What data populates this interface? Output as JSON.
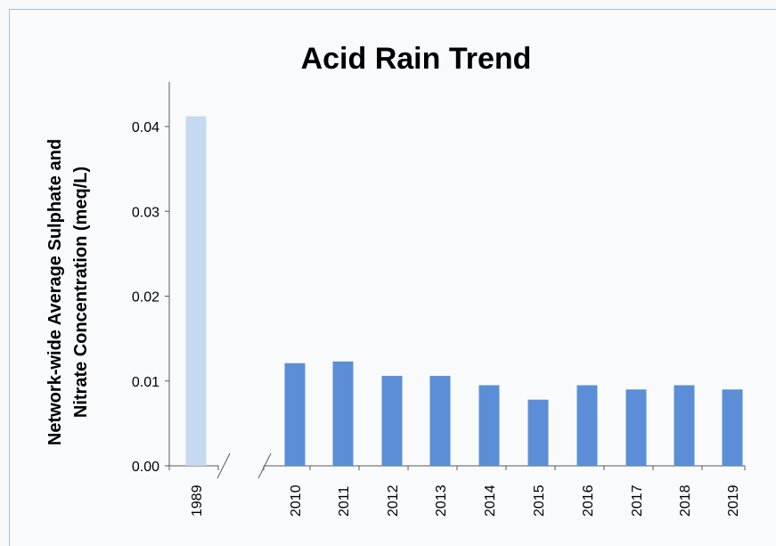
{
  "chart_data": {
    "type": "bar",
    "title": "Acid Rain Trend",
    "ylabel": "Network-wide Average Sulphate and Nitrate Concentration (meq/L)",
    "xlabel": "",
    "categories": [
      "1989",
      "2010",
      "2011",
      "2012",
      "2013",
      "2014",
      "2015",
      "2016",
      "2017",
      "2018",
      "2019"
    ],
    "values": [
      0.0412,
      0.0121,
      0.0123,
      0.0106,
      0.0106,
      0.0095,
      0.0078,
      0.0095,
      0.009,
      0.0095,
      0.009
    ],
    "ylim": [
      0,
      0.045
    ],
    "yticks": [
      "0.00",
      "0.01",
      "0.02",
      "0.03",
      "0.04"
    ],
    "ytick_values": [
      0,
      0.01,
      0.02,
      0.03,
      0.04
    ],
    "axis_break": "between 1989 and 2010",
    "grid": false,
    "colors": {
      "bar_1989": "#c5d9f0",
      "bar_default": "#5b8ed6",
      "axis": "#595959",
      "text": "#000000"
    }
  }
}
